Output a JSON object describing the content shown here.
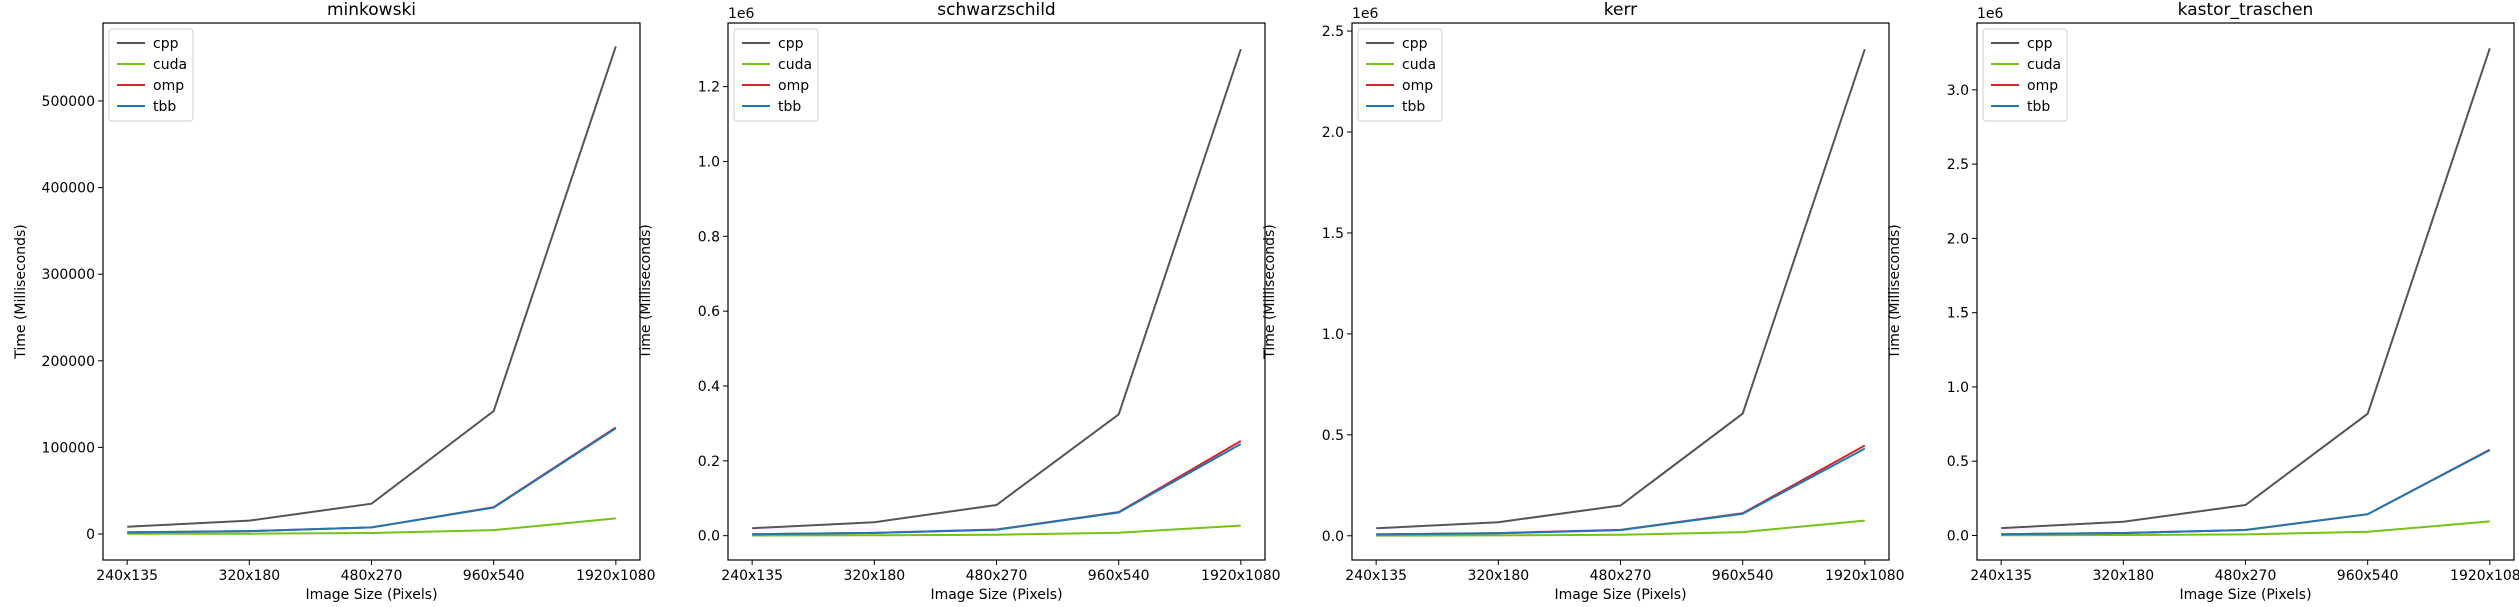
{
  "chart_data": [
    {
      "type": "line",
      "title": "minkowski",
      "xlabel": "Image Size (Pixels)",
      "ylabel": "Time (Milliseconds)",
      "categories": [
        "240x135",
        "320x180",
        "480x270",
        "960x540",
        "1920x1080"
      ],
      "ylim": [
        -30000,
        590000
      ],
      "yticks": [
        0,
        100000,
        200000,
        300000,
        400000,
        500000
      ],
      "ytick_labels": [
        "0",
        "100000",
        "200000",
        "300000",
        "400000",
        "500000"
      ],
      "sci_label": "",
      "legend": "top-left",
      "series": [
        {
          "name": "cpp",
          "color": "#555555",
          "values": [
            8500,
            15500,
            35000,
            142000,
            563000
          ]
        },
        {
          "name": "cuda",
          "color": "#76c219",
          "values": [
            200,
            400,
            1200,
            4500,
            18000
          ]
        },
        {
          "name": "omp",
          "color": "#d62728",
          "values": [
            1900,
            3400,
            7600,
            31000,
            123000
          ]
        },
        {
          "name": "tbb",
          "color": "#1f77b4",
          "values": [
            1900,
            3400,
            7600,
            30500,
            122000
          ]
        }
      ]
    },
    {
      "type": "line",
      "title": "schwarzschild",
      "xlabel": "Image Size (Pixels)",
      "ylabel": "Time (Milliseconds)",
      "categories": [
        "240x135",
        "320x180",
        "480x270",
        "960x540",
        "1920x1080"
      ],
      "ylim": [
        -65000,
        1370000
      ],
      "yticks": [
        0,
        200000,
        400000,
        600000,
        800000,
        1000000,
        1200000
      ],
      "ytick_labels": [
        "0.0",
        "0.2",
        "0.4",
        "0.6",
        "0.8",
        "1.0",
        "1.2"
      ],
      "sci_label": "1e6",
      "legend": "top-left",
      "series": [
        {
          "name": "cpp",
          "color": "#555555",
          "values": [
            20000,
            36000,
            82000,
            324000,
            1300000
          ]
        },
        {
          "name": "cuda",
          "color": "#76c219",
          "values": [
            500,
            1000,
            2500,
            8000,
            27000
          ]
        },
        {
          "name": "omp",
          "color": "#d62728",
          "values": [
            4000,
            7500,
            16500,
            63000,
            253000
          ]
        },
        {
          "name": "tbb",
          "color": "#1f77b4",
          "values": [
            4000,
            7300,
            16000,
            62000,
            245000
          ]
        }
      ]
    },
    {
      "type": "line",
      "title": "kerr",
      "xlabel": "Image Size (Pixels)",
      "ylabel": "Time (Milliseconds)",
      "categories": [
        "240x135",
        "320x180",
        "480x270",
        "960x540",
        "1920x1080"
      ],
      "ylim": [
        -120000,
        2540000
      ],
      "yticks": [
        0,
        500000,
        1000000,
        1500000,
        2000000,
        2500000
      ],
      "ytick_labels": [
        "0.0",
        "0.5",
        "1.0",
        "1.5",
        "2.0",
        "2.5"
      ],
      "sci_label": "1e6",
      "legend": "top-left",
      "series": [
        {
          "name": "cpp",
          "color": "#555555",
          "values": [
            37000,
            67000,
            150000,
            605000,
            2410000
          ]
        },
        {
          "name": "cuda",
          "color": "#76c219",
          "values": [
            1000,
            2000,
            5000,
            18000,
            75000
          ]
        },
        {
          "name": "omp",
          "color": "#d62728",
          "values": [
            7000,
            13000,
            29000,
            112000,
            447000
          ]
        },
        {
          "name": "tbb",
          "color": "#1f77b4",
          "values": [
            7000,
            12500,
            28000,
            109000,
            432000
          ]
        }
      ]
    },
    {
      "type": "line",
      "title": "kastor_traschen",
      "xlabel": "Image Size (Pixels)",
      "ylabel": "Time (Milliseconds)",
      "categories": [
        "240x135",
        "320x180",
        "480x270",
        "960x540",
        "1920x1080"
      ],
      "ylim": [
        -165000,
        3450000
      ],
      "yticks": [
        0,
        500000,
        1000000,
        1500000,
        2000000,
        2500000,
        3000000
      ],
      "ytick_labels": [
        "0.0",
        "0.5",
        "1.0",
        "1.5",
        "2.0",
        "2.5",
        "3.0"
      ],
      "sci_label": "1e6",
      "legend": "top-left",
      "series": [
        {
          "name": "cpp",
          "color": "#555555",
          "values": [
            50000,
            92000,
            205000,
            820000,
            3280000
          ]
        },
        {
          "name": "cuda",
          "color": "#76c219",
          "values": [
            1500,
            3000,
            7000,
            25000,
            95000
          ]
        },
        {
          "name": "omp",
          "color": "#d62728",
          "values": [
            9000,
            16500,
            37000,
            143000,
            578000
          ]
        },
        {
          "name": "tbb",
          "color": "#1f77b4",
          "values": [
            9000,
            16500,
            37000,
            143000,
            575000
          ]
        }
      ]
    }
  ]
}
